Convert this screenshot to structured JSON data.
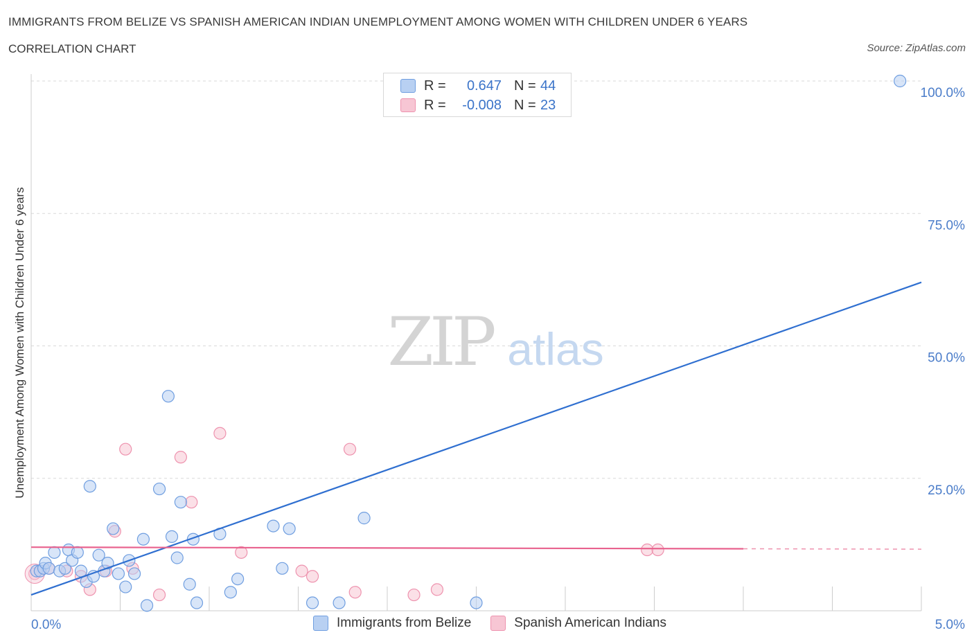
{
  "header": {
    "title": "IMMIGRANTS FROM BELIZE VS SPANISH AMERICAN INDIAN UNEMPLOYMENT AMONG WOMEN WITH CHILDREN UNDER 6 YEARS",
    "subtitle": "CORRELATION CHART",
    "source": "Source: ZipAtlas.com"
  },
  "watermark": {
    "zip": "ZIP",
    "atlas": "atlas"
  },
  "stats_legend": {
    "rows": [
      {
        "r_label": "R =",
        "r_value": "0.647",
        "n_label": "N =",
        "n_value": "44",
        "color": "#b8d0f2"
      },
      {
        "r_label": "R =",
        "r_value": "-0.008",
        "n_label": "N =",
        "n_value": "23",
        "color": "#f7c6d4"
      }
    ]
  },
  "bottom_legend": [
    {
      "label": "Immigrants from Belize",
      "color": "#b8d0f2"
    },
    {
      "label": "Spanish American Indians",
      "color": "#f7c6d4"
    }
  ],
  "colors": {
    "blue_fill": "#b8d0f2",
    "blue_stroke": "#6f9ee0",
    "blue_line": "#2f6fd0",
    "pink_fill": "#f7c6d4",
    "pink_stroke": "#ee92ae",
    "pink_line": "#e8628e",
    "tick_label": "#4a7cc9",
    "grid": "#d9d9d9"
  },
  "chart_data": {
    "type": "scatter",
    "title": "IMMIGRANTS FROM BELIZE VS SPANISH AMERICAN INDIAN UNEMPLOYMENT AMONG WOMEN WITH CHILDREN UNDER 6 YEARS",
    "ylabel": "Unemployment Among Women with Children Under 6 years",
    "xlabel": "",
    "xlim": [
      0,
      5
    ],
    "ylim": [
      0,
      100
    ],
    "x_tick_labels": [
      "0.0%",
      "5.0%"
    ],
    "y_tick_labels": [
      "100.0%",
      "75.0%",
      "50.0%",
      "25.0%"
    ],
    "y_ticks": [
      100,
      75,
      50,
      25
    ],
    "grid": "dashed horizontal",
    "legend": "top-center",
    "series": [
      {
        "name": "Immigrants from Belize",
        "points": [
          [
            0.03,
            7.5
          ],
          [
            0.05,
            7.5
          ],
          [
            0.07,
            8.0
          ],
          [
            0.08,
            9.0
          ],
          [
            0.1,
            8.0
          ],
          [
            0.13,
            11.0
          ],
          [
            0.16,
            7.5
          ],
          [
            0.19,
            8.0
          ],
          [
            0.21,
            11.5
          ],
          [
            0.23,
            9.5
          ],
          [
            0.26,
            11.0
          ],
          [
            0.28,
            7.5
          ],
          [
            0.31,
            5.5
          ],
          [
            0.35,
            6.5
          ],
          [
            0.38,
            10.5
          ],
          [
            0.41,
            7.5
          ],
          [
            0.43,
            9.0
          ],
          [
            0.46,
            15.5
          ],
          [
            0.49,
            7.0
          ],
          [
            0.53,
            4.5
          ],
          [
            0.55,
            9.5
          ],
          [
            0.58,
            7.0
          ],
          [
            0.63,
            13.5
          ],
          [
            0.65,
            1.0
          ],
          [
            0.72,
            23.0
          ],
          [
            0.77,
            40.5
          ],
          [
            0.79,
            14.0
          ],
          [
            0.82,
            10.0
          ],
          [
            0.84,
            20.5
          ],
          [
            0.89,
            5.0
          ],
          [
            0.91,
            13.5
          ],
          [
            0.93,
            1.5
          ],
          [
            1.06,
            14.5
          ],
          [
            1.12,
            3.5
          ],
          [
            1.16,
            6.0
          ],
          [
            1.36,
            16.0
          ],
          [
            1.41,
            8.0
          ],
          [
            1.45,
            15.5
          ],
          [
            1.58,
            1.5
          ],
          [
            1.73,
            1.5
          ],
          [
            1.87,
            17.5
          ],
          [
            2.5,
            1.5
          ],
          [
            0.33,
            23.5
          ],
          [
            4.88,
            100.0
          ]
        ],
        "trend": {
          "x": [
            0,
            5
          ],
          "y": [
            3.0,
            62.0
          ]
        }
      },
      {
        "name": "Spanish American Indians",
        "points": [
          [
            0.02,
            7.0
          ],
          [
            0.05,
            7.5
          ],
          [
            0.1,
            8.0
          ],
          [
            0.2,
            7.5
          ],
          [
            0.28,
            6.5
          ],
          [
            0.33,
            4.0
          ],
          [
            0.42,
            7.5
          ],
          [
            0.47,
            15.0
          ],
          [
            0.53,
            30.5
          ],
          [
            0.57,
            8.0
          ],
          [
            0.72,
            3.0
          ],
          [
            0.84,
            29.0
          ],
          [
            0.9,
            20.5
          ],
          [
            1.06,
            33.5
          ],
          [
            1.18,
            11.0
          ],
          [
            1.52,
            7.5
          ],
          [
            1.58,
            6.5
          ],
          [
            1.79,
            30.5
          ],
          [
            1.82,
            3.5
          ],
          [
            2.15,
            3.0
          ],
          [
            2.28,
            4.0
          ],
          [
            3.46,
            11.5
          ],
          [
            3.52,
            11.5
          ]
        ],
        "trend": {
          "x": [
            0,
            4.0
          ],
          "y": [
            12.0,
            11.7
          ],
          "dashed_extension_to": 5.0
        }
      }
    ]
  }
}
